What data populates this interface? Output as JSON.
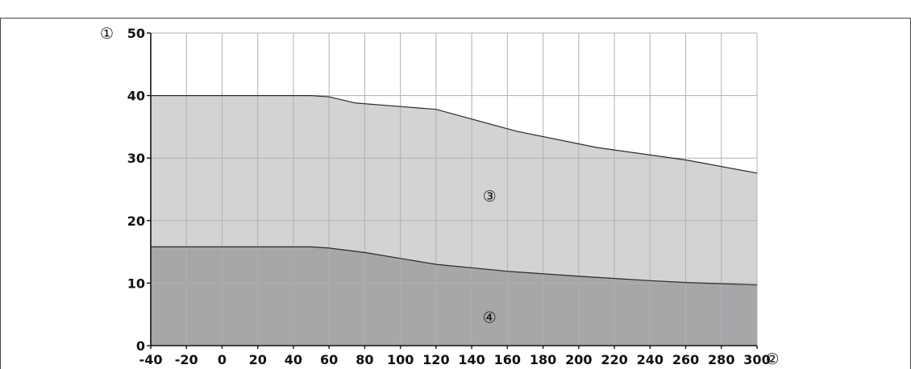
{
  "chart_data": {
    "type": "area",
    "x": [
      -40,
      -20,
      0,
      20,
      40,
      50,
      60,
      80,
      100,
      120,
      140,
      160,
      180,
      200,
      220,
      240,
      260,
      280,
      300
    ],
    "xlim": [
      -40,
      300
    ],
    "ylim": [
      0,
      50
    ],
    "x_ticks": [
      "-40",
      "-20",
      "0",
      "20",
      "40",
      "60",
      "80",
      "100",
      "120",
      "140",
      "160",
      "180",
      "200",
      "220",
      "240",
      "260",
      "280",
      "300"
    ],
    "y_ticks": [
      "0",
      "10",
      "20",
      "30",
      "40",
      "50"
    ],
    "xlabel": "②",
    "ylabel": "①",
    "grid": true,
    "series": [
      {
        "label": "③",
        "color": "#d3d3d4",
        "points": [
          [
            -40,
            40
          ],
          [
            50,
            40
          ],
          [
            60,
            39.8
          ],
          [
            75,
            38.8
          ],
          [
            120,
            37.8
          ],
          [
            165,
            34.3
          ],
          [
            210,
            31.7
          ],
          [
            260,
            29.7
          ],
          [
            300,
            27.6
          ]
        ]
      },
      {
        "label": "④",
        "color": "#a7a7aa",
        "points": [
          [
            -40,
            15.8
          ],
          [
            50,
            15.8
          ],
          [
            60,
            15.6
          ],
          [
            80,
            14.9
          ],
          [
            120,
            13
          ],
          [
            160,
            11.9
          ],
          [
            200,
            11.1
          ],
          [
            240,
            10.4
          ],
          [
            260,
            10.1
          ],
          [
            300,
            9.7
          ]
        ]
      }
    ],
    "region_label_positions": {
      "③": [
        150,
        24
      ],
      "④": [
        150,
        4.6
      ]
    }
  }
}
